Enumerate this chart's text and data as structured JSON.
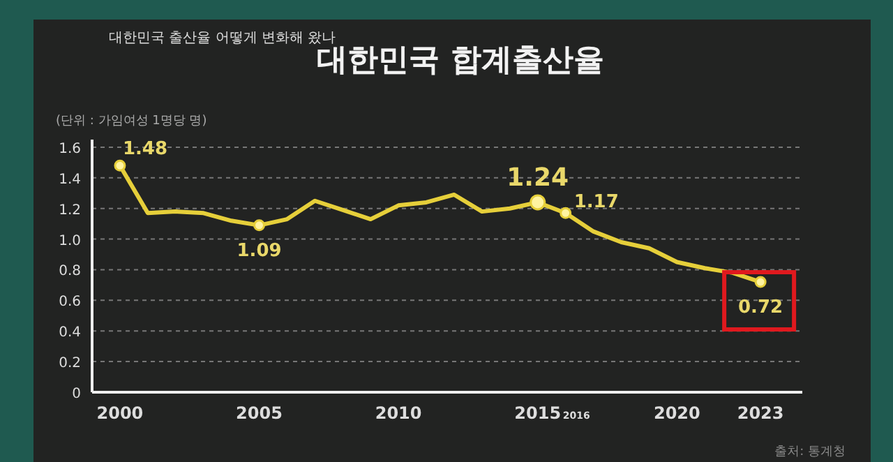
{
  "chart_data": {
    "type": "line",
    "title": "대한민국 합계출산율",
    "subtitle": "대한민국 출산율 어떻게 변화해 왔나",
    "annotations": [
      "(단위 : 가임여성 1명당 명)",
      "출처: 통계청",
      "2016"
    ],
    "x": [
      2000,
      2001,
      2002,
      2003,
      2004,
      2005,
      2006,
      2007,
      2008,
      2009,
      2010,
      2011,
      2012,
      2013,
      2014,
      2015,
      2016,
      2017,
      2018,
      2019,
      2020,
      2021,
      2022,
      2023
    ],
    "series": [
      {
        "color": "#e6cf3a",
        "values": [
          1.48,
          1.17,
          1.18,
          1.17,
          1.12,
          1.09,
          1.13,
          1.25,
          1.19,
          1.13,
          1.22,
          1.24,
          1.29,
          1.18,
          1.2,
          1.24,
          1.17,
          1.05,
          0.98,
          0.94,
          0.85,
          0.81,
          0.78,
          0.72
        ],
        "value_labels": [
          "1.48",
          null,
          null,
          null,
          null,
          "1.09",
          null,
          null,
          null,
          null,
          null,
          null,
          null,
          null,
          null,
          "1.24",
          "1.17",
          null,
          null,
          null,
          null,
          null,
          null,
          "0.72"
        ]
      }
    ],
    "xlim": [
      1999,
      2024.5
    ],
    "ylim": [
      0,
      1.65
    ],
    "xticks": [
      2000,
      2005,
      2010,
      2015,
      2020,
      2023
    ],
    "yticks": [
      0,
      0.2,
      0.4,
      0.6,
      0.8,
      {
        "value": 1,
        "label": "1.0"
      },
      1.2,
      1.4,
      1.6
    ],
    "grid": "y",
    "line_style": "solid"
  }
}
